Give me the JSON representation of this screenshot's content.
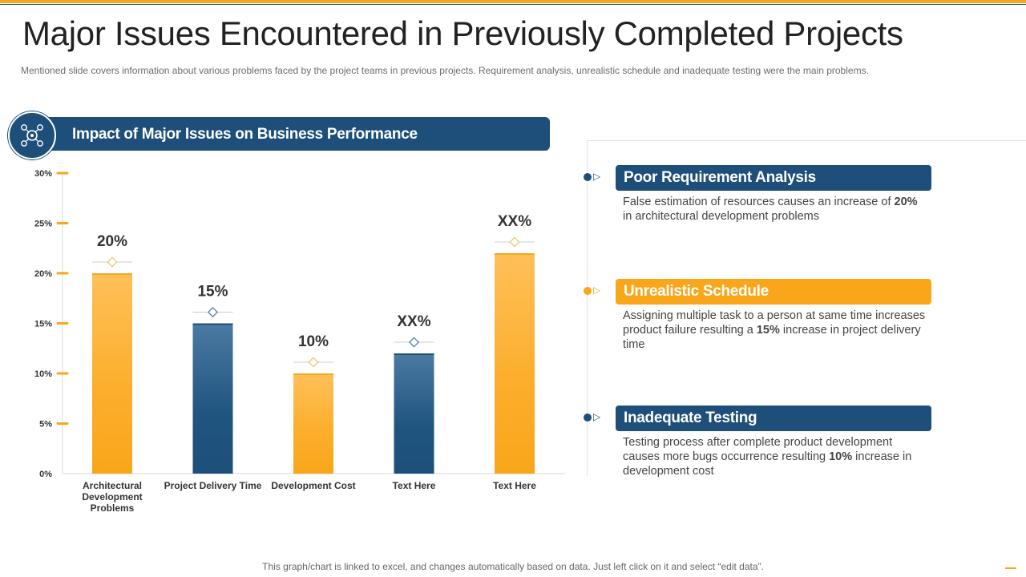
{
  "title": "Major Issues Encountered in Previously Completed Projects",
  "subtitle": "Mentioned slide covers information  about various  problems faced by the project teams in previous  projects. Requirement  analysis, unrealistic schedule and inadequate  testing were  the main problems.",
  "chart_header": "Impact of Major Issues on Business Performance",
  "colors": {
    "navy": "#1d4f7a",
    "orange": "#f9a61a",
    "text": "#333333"
  },
  "chart_data": {
    "type": "bar",
    "title": "Impact of Major Issues on Business Performance",
    "categories": [
      "Architectural Development Problems",
      "Project Delivery Time",
      "Development Cost",
      "Text Here",
      "Text Here"
    ],
    "category_lines": [
      [
        "Architectural",
        "Development",
        "Problems"
      ],
      [
        "Project Delivery Time"
      ],
      [
        "Development Cost"
      ],
      [
        "Text Here"
      ],
      [
        "Text Here"
      ]
    ],
    "values": [
      20,
      15,
      10,
      12,
      22
    ],
    "data_labels": [
      "20%",
      "15%",
      "10%",
      "XX%",
      "XX%"
    ],
    "bar_colors": [
      "orange",
      "navy",
      "orange",
      "navy",
      "orange"
    ],
    "y_ticks": [
      "0%",
      "5%",
      "10%",
      "15%",
      "20%",
      "25%",
      "30%"
    ],
    "ylim": [
      0,
      30
    ],
    "xlabel": "",
    "ylabel": ""
  },
  "issues": [
    {
      "heading": "Poor Requirement Analysis",
      "color": "navy",
      "desc_parts": [
        "False estimation of resources causes an increase of ",
        "20%",
        " in architectural development problems"
      ]
    },
    {
      "heading": "Unrealistic Schedule",
      "color": "orange",
      "desc_parts": [
        "Assigning multiple task to a person at same time increases product failure resulting a ",
        "15%",
        " increase in project delivery time"
      ]
    },
    {
      "heading": "Inadequate Testing",
      "color": "navy",
      "desc_parts": [
        "Testing process after complete product development causes more bugs occurrence resulting ",
        "10%",
        " increase in development cost"
      ]
    }
  ],
  "icons": {
    "chart_header": "gears-icon",
    "bullet": "play-triangle-icon"
  },
  "footnote": "This graph/chart is linked to excel,  and changes automatically based on data. Just left click on it and select “edit data”."
}
